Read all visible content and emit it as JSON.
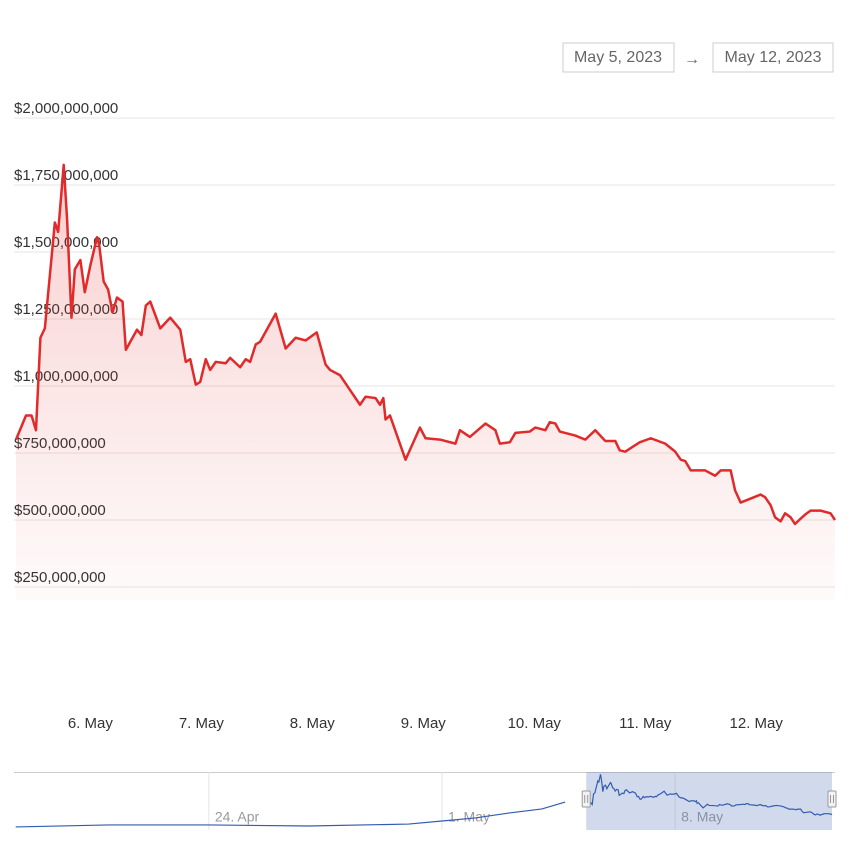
{
  "range_selector": {
    "from": "May 5, 2023",
    "separator": "→",
    "to": "May 12, 2023"
  },
  "chart_data": [
    {
      "type": "area",
      "x": [
        5.33,
        5.42,
        5.47,
        5.51,
        5.55,
        5.59,
        5.68,
        5.71,
        5.76,
        5.79,
        5.83,
        5.86,
        5.91,
        5.95,
        6,
        6.06,
        6.08,
        6.12,
        6.16,
        6.2,
        6.24,
        6.29,
        6.32,
        6.42,
        6.46,
        6.5,
        6.54,
        6.63,
        6.72,
        6.81,
        6.86,
        6.9,
        6.95,
        6.99,
        7.04,
        7.08,
        7.13,
        7.22,
        7.26,
        7.35,
        7.4,
        7.44,
        7.49,
        7.53,
        7.67,
        7.76,
        7.85,
        7.94,
        8.04,
        8.12,
        8.16,
        8.25,
        8.34,
        8.43,
        8.48,
        8.57,
        8.61,
        8.64,
        8.66,
        8.7,
        8.84,
        8.97,
        9.02,
        9.15,
        9.29,
        9.33,
        9.42,
        9.56,
        9.65,
        9.69,
        9.78,
        9.83,
        9.96,
        10.01,
        10.1,
        10.14,
        10.19,
        10.23,
        10.37,
        10.46,
        10.55,
        10.64,
        10.73,
        10.77,
        10.82,
        10.95,
        11.05,
        11.18,
        11.27,
        11.32,
        11.36,
        11.41,
        11.54,
        11.63,
        11.68,
        11.77,
        11.81,
        11.86,
        11.95,
        12.04,
        12.08,
        12.13,
        12.17,
        12.22,
        12.26,
        12.31,
        12.35,
        12.4,
        12.44,
        12.49,
        12.58,
        12.67,
        12.71
      ],
      "series": [
        {
          "color": "#e12a2a",
          "values": [
            800000000,
            890000000,
            890000000,
            835000000,
            1180000000,
            1215000000,
            1610000000,
            1575000000,
            1825000000,
            1625000000,
            1255000000,
            1435000000,
            1470000000,
            1350000000,
            1450000000,
            1555000000,
            1525000000,
            1390000000,
            1360000000,
            1275000000,
            1330000000,
            1315000000,
            1135000000,
            1210000000,
            1190000000,
            1300000000,
            1315000000,
            1215000000,
            1255000000,
            1210000000,
            1090000000,
            1100000000,
            1005000000,
            1015000000,
            1100000000,
            1060000000,
            1090000000,
            1085000000,
            1105000000,
            1070000000,
            1100000000,
            1090000000,
            1155000000,
            1165000000,
            1270000000,
            1140000000,
            1180000000,
            1170000000,
            1200000000,
            1080000000,
            1060000000,
            1040000000,
            985000000,
            930000000,
            960000000,
            955000000,
            930000000,
            955000000,
            875000000,
            890000000,
            725000000,
            845000000,
            805000000,
            800000000,
            785000000,
            835000000,
            810000000,
            860000000,
            835000000,
            785000000,
            790000000,
            825000000,
            830000000,
            845000000,
            835000000,
            865000000,
            860000000,
            830000000,
            815000000,
            800000000,
            835000000,
            795000000,
            795000000,
            760000000,
            755000000,
            790000000,
            805000000,
            785000000,
            755000000,
            725000000,
            720000000,
            685000000,
            685000000,
            665000000,
            685000000,
            685000000,
            610000000,
            565000000,
            580000000,
            595000000,
            585000000,
            555000000,
            510000000,
            495000000,
            525000000,
            510000000,
            485000000,
            505000000,
            520000000,
            535000000,
            535000000,
            525000000,
            500000000
          ]
        }
      ],
      "xlim": [
        5.33,
        12.71
      ],
      "xticks": [
        {
          "value": 6,
          "label": "6. May"
        },
        {
          "value": 7,
          "label": "7. May"
        },
        {
          "value": 8,
          "label": "8. May"
        },
        {
          "value": 9,
          "label": "9. May"
        },
        {
          "value": 10,
          "label": "10. May"
        },
        {
          "value": 11,
          "label": "11. May"
        },
        {
          "value": 12,
          "label": "12. May"
        }
      ],
      "ylim": [
        250000000,
        2000000000
      ],
      "yticks": [
        {
          "value": 250000000,
          "label": "$250,000,000"
        },
        {
          "value": 500000000,
          "label": "$500,000,000"
        },
        {
          "value": 750000000,
          "label": "$750,000,000"
        },
        {
          "value": 1000000000,
          "label": "$1,000,000,000"
        },
        {
          "value": 1250000000,
          "label": "$1,250,000,000"
        },
        {
          "value": 1500000000,
          "label": "$1,500,000,000"
        },
        {
          "value": 1750000000,
          "label": "$1,750,000,000"
        },
        {
          "value": 2000000000,
          "label": "$2,000,000,000"
        }
      ],
      "grid": true
    },
    {
      "type": "area",
      "x": [
        -11.8,
        -9,
        -6,
        -3,
        0,
        1,
        2,
        3,
        4,
        4.7
      ],
      "values": [
        100000000,
        165000000,
        165000000,
        130000000,
        195000000,
        295000000,
        395000000,
        555000000,
        690000000,
        915000000
      ],
      "color": "#335cad",
      "xlim": [
        -11.85,
        12.8
      ],
      "ylim": [
        0,
        1900000000
      ],
      "xticks": [
        {
          "value": -6,
          "label": "24. Apr"
        },
        {
          "value": 1,
          "label": "1. May"
        },
        {
          "value": 8,
          "label": "8. May"
        }
      ]
    }
  ]
}
